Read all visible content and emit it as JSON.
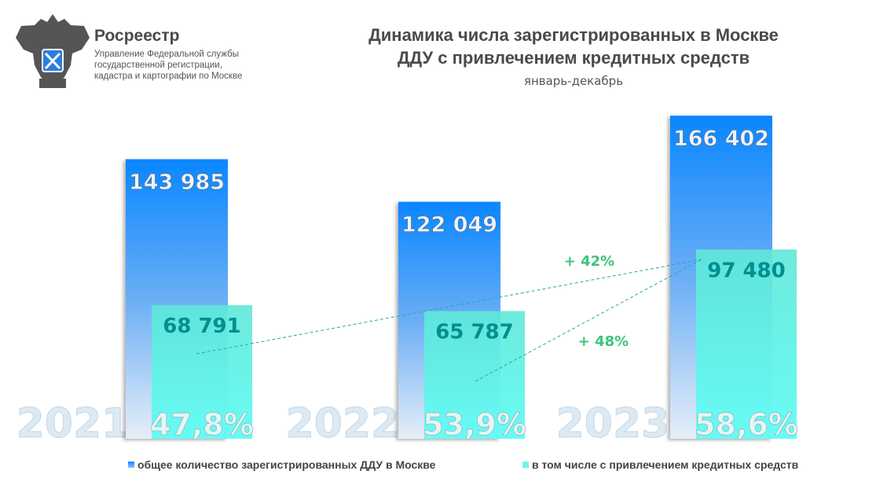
{
  "org": {
    "name": "Росреестр",
    "lines": [
      "Управление Федеральной службы",
      "государственной регистрации,",
      "кадастра и картографии по Москве"
    ]
  },
  "title_lines": [
    "Динамика числа зарегистрированных в Москве",
    "ДДУ с привлечением кредитных средств"
  ],
  "period": "январь-декабрь",
  "colors": {
    "total": "#1a8cff",
    "credit": "#5ff5e6",
    "value_dark": "#008f8f",
    "growth": "#3cc47a"
  },
  "chart_data": {
    "type": "bar",
    "categories": [
      "2021",
      "2022",
      "2023"
    ],
    "series": [
      {
        "name": "общее количество зарегистрированных ДДУ в Москве",
        "values": [
          143985,
          122049,
          166402
        ],
        "labels": [
          "143 985",
          "122 049",
          "166 402"
        ]
      },
      {
        "name": "в том числе с привлечением кредитных средств",
        "values": [
          68791,
          65787,
          97480
        ],
        "labels": [
          "68 791",
          "65 787",
          "97 480"
        ]
      }
    ],
    "share_labels": [
      "47,8%",
      "53,9%",
      "58,6%"
    ],
    "annotations": [
      {
        "text": "+ 42%",
        "from": "2021",
        "to": "2023"
      },
      {
        "text": "+ 48%",
        "from": "2022",
        "to": "2023"
      }
    ],
    "legend_position": "bottom"
  }
}
